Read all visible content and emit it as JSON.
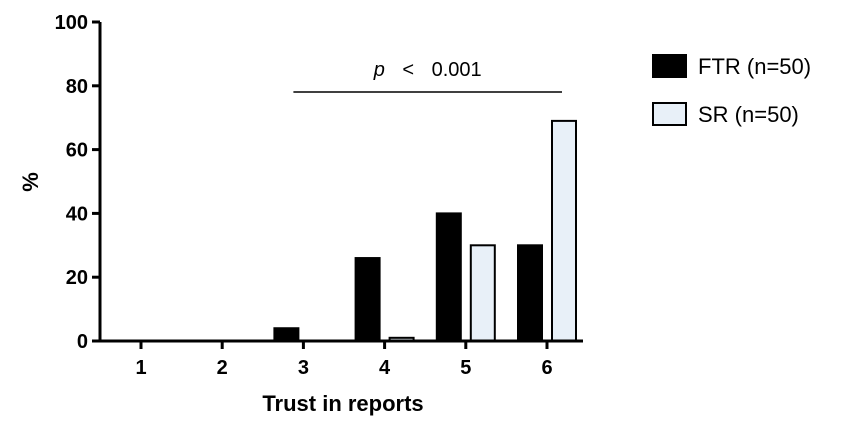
{
  "chart_data": {
    "type": "bar",
    "title": "",
    "xlabel": "Trust in reports",
    "ylabel": "%",
    "categories": [
      "1",
      "2",
      "3",
      "4",
      "5",
      "6"
    ],
    "ylim": [
      0,
      100
    ],
    "yticks": [
      0,
      20,
      40,
      60,
      80,
      100
    ],
    "grid": false,
    "legend_position": "top-right",
    "series": [
      {
        "name": "FTR (n=50)",
        "color": "#000000",
        "values": [
          0,
          0,
          4,
          26,
          40,
          30
        ]
      },
      {
        "name": "SR (n=50)",
        "color": "#e8f0f8",
        "values": [
          0,
          0,
          0,
          1,
          30,
          69
        ]
      }
    ],
    "annotation": {
      "p_symbol": "p",
      "comparator": "<",
      "value": "0.001",
      "from_category": "3",
      "to_category": "6"
    }
  }
}
